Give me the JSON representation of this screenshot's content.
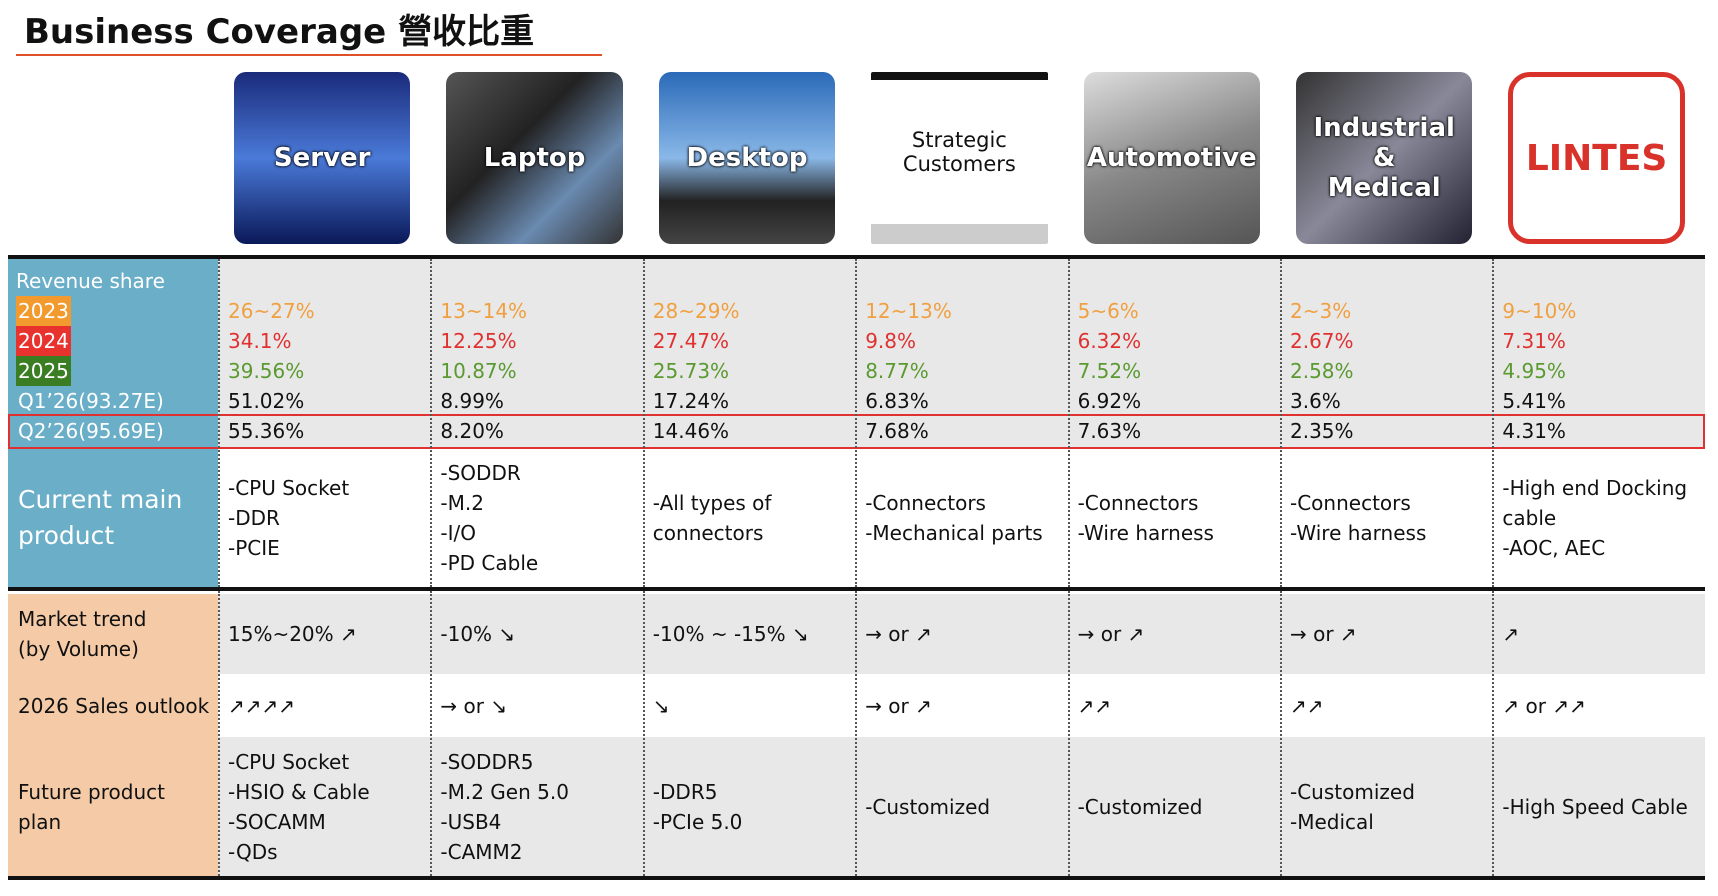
{
  "header": {
    "title": "Business Coverage 營收比重"
  },
  "segments": [
    {
      "label": "Server"
    },
    {
      "label": "Laptop"
    },
    {
      "label": "Desktop"
    },
    {
      "label": "Strategic Customers"
    },
    {
      "label": "Automotive"
    },
    {
      "label": "Industrial & Medical"
    },
    {
      "label": "LINTES"
    }
  ],
  "revenue": {
    "title": "Revenue share",
    "rows": [
      {
        "label": "2023",
        "values": [
          "26~27%",
          "13~14%",
          "28~29%",
          "12~13%",
          "5~6%",
          "2~3%",
          "9~10%"
        ]
      },
      {
        "label": "2024",
        "values": [
          "34.1%",
          "12.25%",
          "27.47%",
          "9.8%",
          "6.32%",
          "2.67%",
          "7.31%"
        ]
      },
      {
        "label": "2025",
        "values": [
          "39.56%",
          "10.87%",
          "25.73%",
          "8.77%",
          "7.52%",
          "2.58%",
          "4.95%"
        ]
      },
      {
        "label": "Q1’26(93.27E)",
        "values": [
          "51.02%",
          "8.99%",
          "17.24%",
          "6.83%",
          "6.92%",
          "3.6%",
          "5.41%"
        ]
      },
      {
        "label": "Q2’26(95.69E)",
        "values": [
          "55.36%",
          "8.20%",
          "14.46%",
          "7.68%",
          "7.63%",
          "2.35%",
          "4.31%"
        ]
      }
    ]
  },
  "main_product": {
    "label": [
      "Current main",
      "product"
    ],
    "items": [
      [
        "-CPU Socket",
        "-DDR",
        "-PCIE"
      ],
      [
        "-SODDR",
        "-M.2",
        "-I/O",
        "-PD Cable"
      ],
      [
        "-All types of",
        "connectors"
      ],
      [
        "-Connectors",
        "-Mechanical parts"
      ],
      [
        "-Connectors",
        "-Wire harness"
      ],
      [
        "-Connectors",
        "-Wire harness"
      ],
      [
        "-High end Docking",
        "cable",
        "-AOC, AEC"
      ]
    ]
  },
  "outlook": {
    "rows": [
      {
        "label": [
          "Market trend",
          "(by Volume)"
        ],
        "values": [
          "15%~20% ↗",
          "-10% ↘",
          "-10% ~ -15% ↘",
          "→ or ↗",
          "→ or ↗",
          "→ or ↗",
          "↗"
        ]
      },
      {
        "label": [
          "2026 Sales outlook"
        ],
        "values": [
          "↗↗↗↗",
          "→ or ↘",
          "↘",
          "→ or ↗",
          "↗↗",
          "↗↗",
          "↗ or ↗↗"
        ]
      }
    ]
  },
  "future_plan": {
    "label": [
      "Future product",
      "plan"
    ],
    "items": [
      [
        "-CPU Socket",
        "-HSIO & Cable",
        "-SOCAMM",
        "-QDs"
      ],
      [
        "-SODDR5",
        "-M.2 Gen 5.0",
        "-USB4",
        "-CAMM2"
      ],
      [
        "-DDR5",
        "-PCIe 5.0"
      ],
      [
        "-Customized"
      ],
      [
        "-Customized"
      ],
      [
        "-Customized",
        "-Medical"
      ],
      [
        "-High Speed Cable"
      ]
    ]
  }
}
